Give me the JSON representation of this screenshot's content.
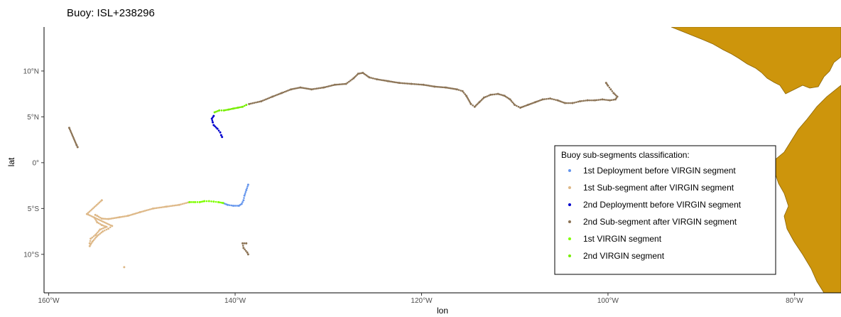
{
  "chart_data": {
    "type": "scatter",
    "title": "Buoy: ISL+238296",
    "xlabel": "lon",
    "ylabel": "lat",
    "xlim": [
      -160.5,
      -75
    ],
    "ylim": [
      -14.2,
      14.8
    ],
    "x_ticks": [
      -160,
      -140,
      -120,
      -100,
      -80
    ],
    "x_tick_labels": [
      "160°W",
      "140°W",
      "120°W",
      "100°W",
      "80°W"
    ],
    "y_ticks": [
      10,
      5,
      0,
      -5,
      -10
    ],
    "y_tick_labels": [
      "10°N",
      "5°N",
      "0°",
      "5°S",
      "10°S"
    ],
    "grid": false,
    "legend_position": "bottom-right",
    "legend_title": "Buoy sub-segments classification:",
    "land_color": "#CD950C",
    "series": [
      {
        "name": "1st Deployment before VIRGIN segment",
        "color": "#6495ED",
        "points": [
          [
            -138.6,
            -2.4
          ],
          [
            -138.8,
            -3.0
          ],
          [
            -139.0,
            -3.6
          ],
          [
            -139.1,
            -4.1
          ],
          [
            -139.3,
            -4.5
          ],
          [
            -139.6,
            -4.7
          ],
          [
            -140.2,
            -4.7
          ],
          [
            -140.8,
            -4.6
          ],
          [
            -141.3,
            -4.4
          ]
        ]
      },
      {
        "name": "1st Sub-segment after VIRGIN segment",
        "color": "#DEB887",
        "points": [
          [
            -144.9,
            -4.3
          ],
          [
            -146.0,
            -4.6
          ],
          [
            -147.4,
            -4.8
          ],
          [
            -148.8,
            -5.0
          ],
          [
            -150.2,
            -5.4
          ],
          [
            -151.5,
            -5.8
          ],
          [
            -152.4,
            -5.95
          ],
          [
            -153.6,
            -6.15
          ],
          [
            -154.3,
            -6.1
          ],
          [
            -154.8,
            -5.8
          ],
          [
            -155.0,
            -5.7
          ],
          [
            -155.1,
            -6.0
          ],
          [
            -154.8,
            -6.5
          ],
          [
            -154.3,
            -6.8
          ],
          [
            -153.8,
            -7.0
          ],
          [
            -154.5,
            -7.3
          ],
          [
            -155.0,
            -7.9
          ],
          [
            -155.5,
            -8.3
          ],
          [
            -155.6,
            -8.8
          ],
          [
            -155.6,
            -9.1
          ],
          [
            -155.3,
            -8.6
          ],
          [
            -154.8,
            -8.0
          ],
          [
            -154.2,
            -7.5
          ],
          [
            -153.6,
            -7.2
          ],
          [
            -153.2,
            -6.9
          ],
          [
            -155.9,
            -5.6
          ],
          [
            -154.3,
            -4.1
          ],
          [
            -151.9,
            -11.4
          ]
        ]
      },
      {
        "name": "2nd Deploymentt before VIRGIN segment",
        "color": "#0000CD",
        "points": [
          [
            -142.3,
            5.1
          ],
          [
            -142.5,
            4.8
          ],
          [
            -142.4,
            4.4
          ],
          [
            -142.3,
            4.1
          ],
          [
            -141.9,
            3.7
          ],
          [
            -141.6,
            3.3
          ],
          [
            -141.5,
            3.0
          ],
          [
            -141.4,
            2.8
          ]
        ]
      },
      {
        "name": "2nd Sub-segment after VIRGIN segment",
        "color": "#8B7355",
        "points": [
          [
            -138.5,
            6.4
          ],
          [
            -137.2,
            6.7
          ],
          [
            -136.0,
            7.2
          ],
          [
            -135.0,
            7.6
          ],
          [
            -134.0,
            8.0
          ],
          [
            -133.0,
            8.2
          ],
          [
            -131.8,
            8.0
          ],
          [
            -130.5,
            8.2
          ],
          [
            -129.3,
            8.5
          ],
          [
            -128.1,
            8.6
          ],
          [
            -127.3,
            9.2
          ],
          [
            -126.8,
            9.7
          ],
          [
            -126.3,
            9.8
          ],
          [
            -125.6,
            9.3
          ],
          [
            -124.8,
            9.1
          ],
          [
            -123.6,
            8.9
          ],
          [
            -122.4,
            8.7
          ],
          [
            -121.1,
            8.6
          ],
          [
            -119.8,
            8.5
          ],
          [
            -118.6,
            8.3
          ],
          [
            -117.4,
            8.2
          ],
          [
            -116.2,
            8.0
          ],
          [
            -115.6,
            7.8
          ],
          [
            -115.2,
            7.3
          ],
          [
            -114.7,
            6.4
          ],
          [
            -114.3,
            6.1
          ],
          [
            -113.8,
            6.6
          ],
          [
            -113.3,
            7.1
          ],
          [
            -112.6,
            7.4
          ],
          [
            -111.8,
            7.5
          ],
          [
            -111.1,
            7.3
          ],
          [
            -110.5,
            6.9
          ],
          [
            -110.0,
            6.3
          ],
          [
            -109.4,
            6.0
          ],
          [
            -108.6,
            6.3
          ],
          [
            -107.8,
            6.6
          ],
          [
            -107.0,
            6.9
          ],
          [
            -106.2,
            7.0
          ],
          [
            -105.4,
            6.8
          ],
          [
            -104.6,
            6.5
          ],
          [
            -103.8,
            6.5
          ],
          [
            -103.0,
            6.7
          ],
          [
            -102.2,
            6.8
          ],
          [
            -101.4,
            6.8
          ],
          [
            -100.6,
            6.9
          ],
          [
            -99.8,
            6.8
          ],
          [
            -99.2,
            6.9
          ],
          [
            -99.0,
            7.2
          ],
          [
            -99.4,
            7.6
          ],
          [
            -99.7,
            8.0
          ],
          [
            -100.0,
            8.4
          ],
          [
            -100.2,
            8.7
          ],
          [
            -157.8,
            3.8
          ],
          [
            -157.0,
            1.9
          ],
          [
            -156.9,
            1.7
          ],
          [
            -138.8,
            -8.8
          ],
          [
            -139.2,
            -8.8
          ],
          [
            -139.1,
            -9.3
          ],
          [
            -138.7,
            -9.8
          ],
          [
            -138.6,
            -10.0
          ]
        ]
      },
      {
        "name": "1st VIRGIN segment",
        "color": "#7FFF00",
        "points": [
          [
            -141.3,
            -4.4
          ],
          [
            -141.8,
            -4.3
          ],
          [
            -142.3,
            -4.25
          ],
          [
            -142.8,
            -4.2
          ],
          [
            -143.3,
            -4.2
          ],
          [
            -143.8,
            -4.3
          ],
          [
            -144.3,
            -4.3
          ],
          [
            -144.9,
            -4.3
          ]
        ]
      },
      {
        "name": "2nd VIRGIN segment",
        "color": "#76EE00",
        "points": [
          [
            -142.2,
            5.5
          ],
          [
            -141.7,
            5.7
          ],
          [
            -141.2,
            5.7
          ],
          [
            -140.7,
            5.8
          ],
          [
            -140.2,
            5.9
          ],
          [
            -139.7,
            6.0
          ],
          [
            -139.2,
            6.1
          ],
          [
            -138.8,
            6.3
          ]
        ]
      }
    ]
  }
}
